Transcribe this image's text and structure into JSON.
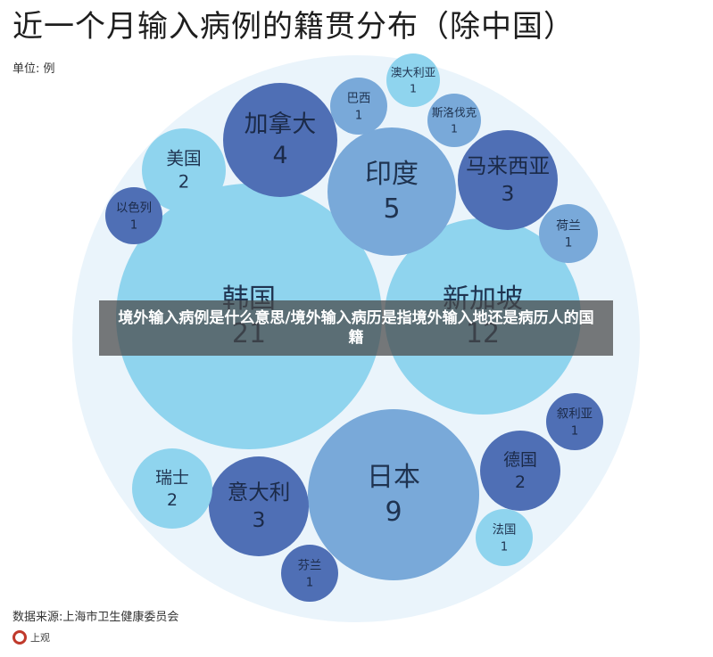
{
  "header": {
    "title": "近一个月输入病例的籍贯分布（除中国）",
    "unit_label": "单位: 例"
  },
  "footer": {
    "source": "数据来源:上海市卫生健康委员会",
    "logo_text": "上观"
  },
  "overlay": {
    "text": "境外输入病例是什么意思/境外输入病历是指境外输入地还是病历人的国籍"
  },
  "colors": {
    "light_blue": "#8fd4ee",
    "mid_blue": "#79a9d9",
    "dark_blue": "#4f6fb5",
    "background_circle": "#eaf4fb"
  },
  "chart_data": {
    "type": "bubble",
    "title": "近一个月输入病例的籍贯分布（除中国）",
    "unit": "单位: 例",
    "items": [
      {
        "name": "韩国",
        "value": 21
      },
      {
        "name": "新加坡",
        "value": 12
      },
      {
        "name": "日本",
        "value": 9
      },
      {
        "name": "印度",
        "value": 5
      },
      {
        "name": "加拿大",
        "value": 4
      },
      {
        "name": "马来西亚",
        "value": 3
      },
      {
        "name": "意大利",
        "value": 3
      },
      {
        "name": "美国",
        "value": 2
      },
      {
        "name": "瑞士",
        "value": 2
      },
      {
        "name": "德国",
        "value": 2
      },
      {
        "name": "巴西",
        "value": 1
      },
      {
        "name": "澳大利亚",
        "value": 1
      },
      {
        "name": "斯洛伐克",
        "value": 1
      },
      {
        "name": "以色列",
        "value": 1
      },
      {
        "name": "荷兰",
        "value": 1
      },
      {
        "name": "叙利亚",
        "value": 1
      },
      {
        "name": "法国",
        "value": 1
      },
      {
        "name": "芬兰",
        "value": 1
      }
    ]
  }
}
